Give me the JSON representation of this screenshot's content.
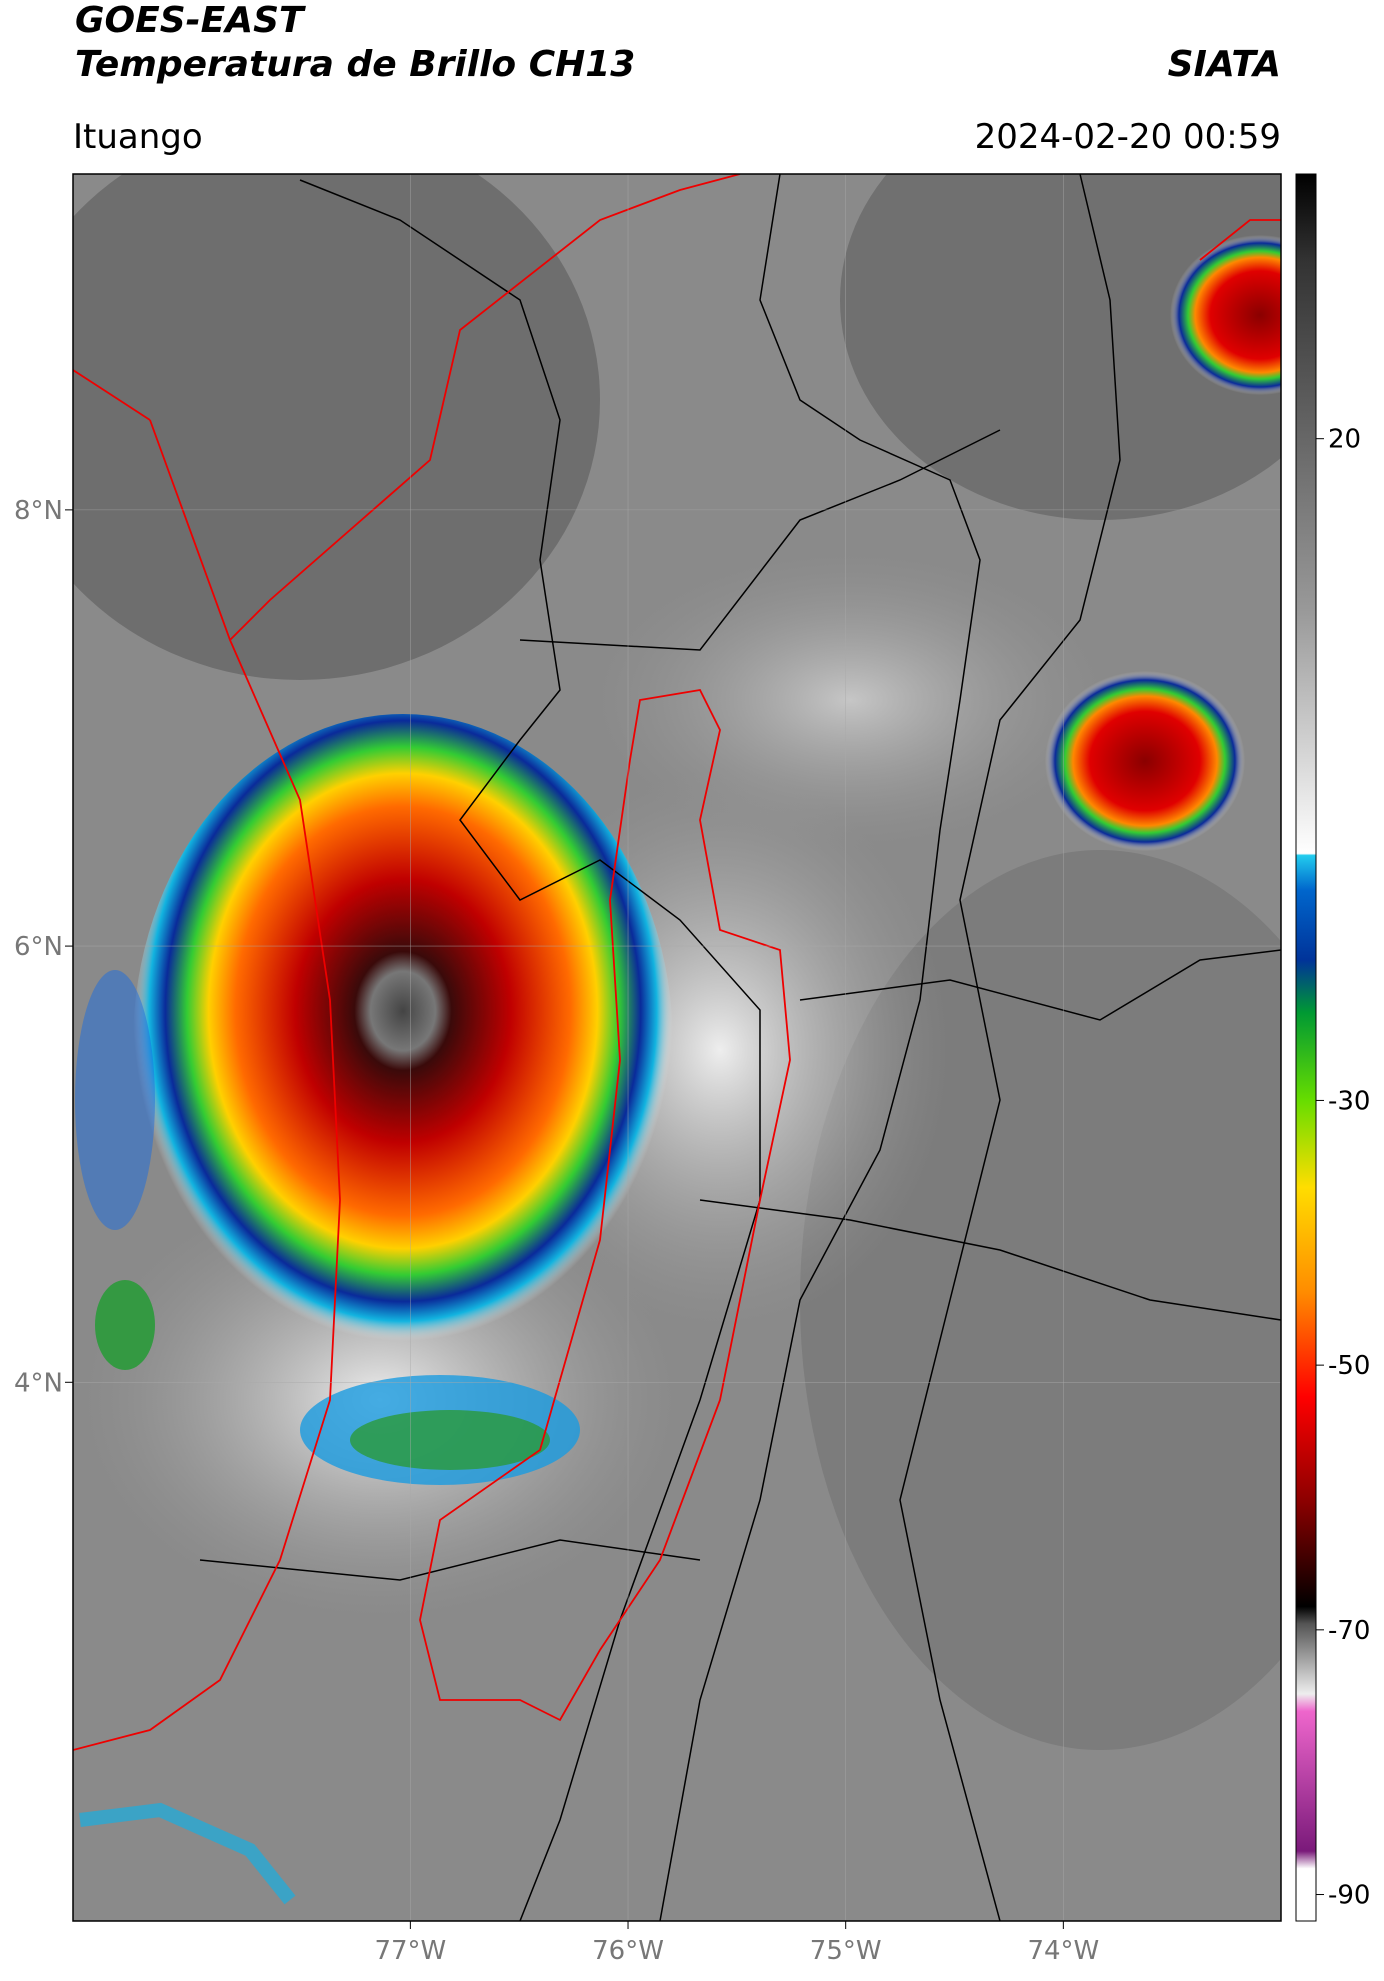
{
  "header": {
    "satellite": "GOES-EAST",
    "product": "Temperatura de Brillo CH13",
    "agency": "SIATA",
    "region": "Ituango",
    "datetime": "2024-02-20 00:59"
  },
  "map": {
    "xlim": [
      -78.55,
      -73.0
    ],
    "ylim": [
      1.53,
      9.54
    ],
    "xticks": [
      {
        "value": -77,
        "label": "77°W"
      },
      {
        "value": -76,
        "label": "76°W"
      },
      {
        "value": -75,
        "label": "75°W"
      },
      {
        "value": -74,
        "label": "74°W"
      }
    ],
    "yticks": [
      {
        "value": 8,
        "label": "8°N"
      },
      {
        "value": 6,
        "label": "6°N"
      },
      {
        "value": 4,
        "label": "4°N"
      }
    ],
    "grid": true
  },
  "colorbar": {
    "clim": [
      -92,
      40
    ],
    "ticks": [
      20,
      -30,
      -50,
      -70,
      -90
    ]
  }
}
